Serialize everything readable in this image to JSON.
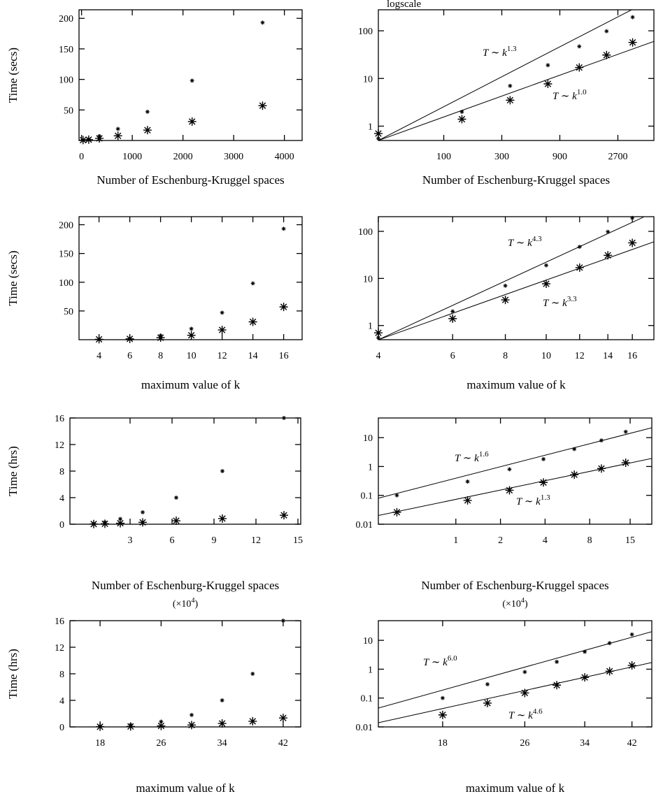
{
  "chart_data": [
    {
      "type": "scatter",
      "xscale": "linear",
      "yscale": "linear",
      "xlabel": "Number of Eschenburg-Kruggel spaces",
      "ylabel": "Time (secs)",
      "x": [
        29,
        141,
        351,
        718,
        1300,
        2180,
        3570
      ],
      "xlim": [
        -50,
        4350
      ],
      "xticks": [
        0,
        1000,
        2000,
        3000,
        4000
      ],
      "ylim": [
        0,
        214
      ],
      "yticks": [
        50,
        100,
        150,
        200
      ],
      "series": [
        {
          "marker": "small-star",
          "color": "#000000",
          "values": [
            0.55,
            2,
            7,
            19,
            47,
            98,
            193
          ]
        },
        {
          "marker": "big-star",
          "color": "#000000",
          "values": [
            0.7,
            1.4,
            3.5,
            7.7,
            17,
            31,
            57
          ]
        }
      ]
    },
    {
      "type": "scatter",
      "xscale": "log",
      "yscale": "log",
      "xlabel": "Number of Eschenburg-Kruggel spaces",
      "note": "logscale",
      "x": [
        29,
        141,
        351,
        718,
        1300,
        2180,
        3570
      ],
      "xlim": [
        29,
        5340
      ],
      "xticks": [
        100,
        300,
        900,
        2700
      ],
      "ylim": [
        0.5,
        276
      ],
      "yticks": [
        1,
        10,
        100
      ],
      "series": [
        {
          "marker": "small-star",
          "color": "#000000",
          "values": [
            0.55,
            2,
            7,
            19,
            47,
            98,
            193
          ]
        },
        {
          "marker": "big-star",
          "color": "#000000",
          "values": [
            0.7,
            1.4,
            3.5,
            7.7,
            17,
            31,
            57
          ]
        }
      ],
      "lines": [
        {
          "x": [
            29,
            3500
          ],
          "y": [
            0.5,
            276
          ]
        },
        {
          "x": [
            29,
            5340
          ],
          "y": [
            0.5,
            60
          ]
        }
      ],
      "annotations": [
        {
          "text": "T ∼ k",
          "sup": "1.3"
        },
        {
          "text": "T ∼ k",
          "sup": "1.0"
        }
      ]
    },
    {
      "type": "scatter",
      "xscale": "linear",
      "yscale": "linear",
      "xlabel": "maximum value of k",
      "ylabel": "Time (secs)",
      "x": [
        4,
        6,
        8,
        10,
        12,
        14,
        16
      ],
      "xlim": [
        2.7,
        17.2
      ],
      "xticks": [
        4,
        6,
        8,
        10,
        12,
        14,
        16
      ],
      "ylim": [
        0,
        214
      ],
      "yticks": [
        50,
        100,
        150,
        200
      ],
      "series": [
        {
          "marker": "small-star",
          "color": "#000000",
          "values": [
            0.55,
            2,
            7,
            19,
            47,
            98,
            193
          ]
        },
        {
          "marker": "big-star",
          "color": "#000000",
          "values": [
            0.7,
            1.4,
            3.5,
            7.7,
            17,
            31,
            57
          ]
        }
      ]
    },
    {
      "type": "scatter",
      "xscale": "log",
      "yscale": "log",
      "xlabel": "maximum value of k",
      "x": [
        4,
        6,
        8,
        10,
        12,
        14,
        16
      ],
      "xlim": [
        4,
        18
      ],
      "xticks": [
        4,
        6,
        8,
        10,
        12,
        14,
        16
      ],
      "ylim": [
        0.5,
        205
      ],
      "yticks": [
        1,
        10,
        100
      ],
      "series": [
        {
          "marker": "small-star",
          "color": "#000000",
          "values": [
            0.55,
            2,
            7,
            19,
            47,
            98,
            193
          ]
        },
        {
          "marker": "big-star",
          "color": "#000000",
          "values": [
            0.7,
            1.4,
            3.5,
            7.7,
            17,
            31,
            57
          ]
        }
      ],
      "lines": [
        {
          "x": [
            4,
            17
          ],
          "y": [
            0.5,
            200
          ]
        },
        {
          "x": [
            4,
            18
          ],
          "y": [
            0.5,
            60
          ]
        }
      ],
      "annotations": [
        {
          "text": "T ∼ k",
          "sup": "4.3"
        },
        {
          "text": "T ∼ k",
          "sup": "3.3"
        }
      ]
    },
    {
      "type": "scatter",
      "xscale": "linear",
      "yscale": "linear",
      "xlabel": "Number of Eschenburg-Kruggel spaces",
      "xunit": {
        "pre": "(×10",
        "sup": "4",
        "post": ")"
      },
      "ylabel": "Time (hrs)",
      "x": [
        0.4,
        1.2,
        2.3,
        3.9,
        6.3,
        9.6,
        14
      ],
      "xlim": [
        -1.3,
        15.2
      ],
      "xticks": [
        3,
        6,
        9,
        12,
        15
      ],
      "ylim": [
        0,
        16
      ],
      "yticks": [
        0,
        4,
        8,
        12,
        16
      ],
      "series": [
        {
          "marker": "small-star",
          "color": "#000000",
          "values": [
            0.1,
            0.3,
            0.8,
            1.8,
            4,
            8,
            16
          ]
        },
        {
          "marker": "big-star",
          "color": "#000000",
          "values": [
            0.026,
            0.067,
            0.15,
            0.28,
            0.52,
            0.85,
            1.35
          ]
        }
      ]
    },
    {
      "type": "scatter",
      "xscale": "log",
      "yscale": "log",
      "xlabel": "Number of Eschenburg-Kruggel spaces",
      "xunit": {
        "pre": "(×10",
        "sup": "4",
        "post": ")"
      },
      "x": [
        0.4,
        1.2,
        2.3,
        3.9,
        6.3,
        9.6,
        14
      ],
      "xlim": [
        0.3,
        21
      ],
      "xticks": [
        1,
        2,
        4,
        8,
        15
      ],
      "ylim": [
        0.01,
        48
      ],
      "yticks": [
        0.01,
        0.1,
        1,
        10
      ],
      "series": [
        {
          "marker": "small-star",
          "color": "#000000",
          "values": [
            0.1,
            0.3,
            0.8,
            1.8,
            4,
            8,
            16
          ]
        },
        {
          "marker": "big-star",
          "color": "#000000",
          "values": [
            0.026,
            0.067,
            0.15,
            0.28,
            0.52,
            0.85,
            1.35
          ]
        }
      ],
      "lines": [
        {
          "x": [
            0.3,
            21
          ],
          "y": [
            0.08,
            22
          ]
        },
        {
          "x": [
            0.3,
            21
          ],
          "y": [
            0.02,
            1.9
          ]
        }
      ],
      "annotations": [
        {
          "text": "T ∼ k",
          "sup": "1.6"
        },
        {
          "text": "T ∼ k",
          "sup": "1.3"
        }
      ]
    },
    {
      "type": "scatter",
      "xscale": "linear",
      "yscale": "linear",
      "xlabel": "maximum value of k",
      "ylabel": "Time (hrs)",
      "x": [
        18,
        22,
        26,
        30,
        34,
        38,
        42
      ],
      "xlim": [
        14.05,
        44.3
      ],
      "xticks": [
        18,
        26,
        34,
        42
      ],
      "ylim": [
        0,
        16
      ],
      "yticks": [
        0,
        4,
        8,
        12,
        16
      ],
      "series": [
        {
          "marker": "small-star",
          "color": "#000000",
          "values": [
            0.1,
            0.3,
            0.8,
            1.8,
            4,
            8,
            16
          ]
        },
        {
          "marker": "big-star",
          "color": "#000000",
          "values": [
            0.026,
            0.067,
            0.15,
            0.28,
            0.52,
            0.85,
            1.35
          ]
        }
      ]
    },
    {
      "type": "scatter",
      "xscale": "log",
      "yscale": "log",
      "xlabel": "maximum value of k",
      "x": [
        18,
        22,
        26,
        30,
        34,
        38,
        42
      ],
      "xlim": [
        13.5,
        45.9
      ],
      "xticks": [
        18,
        26,
        34,
        42
      ],
      "ylim": [
        0.01,
        48
      ],
      "yticks": [
        0.01,
        0.1,
        1,
        10
      ],
      "series": [
        {
          "marker": "small-star",
          "color": "#000000",
          "values": [
            0.1,
            0.3,
            0.8,
            1.8,
            4,
            8,
            16
          ]
        },
        {
          "marker": "big-star",
          "color": "#000000",
          "values": [
            0.026,
            0.067,
            0.15,
            0.28,
            0.52,
            0.85,
            1.35
          ]
        }
      ],
      "lines": [
        {
          "x": [
            13.5,
            45.9
          ],
          "y": [
            0.045,
            20
          ]
        },
        {
          "x": [
            13.5,
            45.9
          ],
          "y": [
            0.014,
            1.7
          ]
        }
      ],
      "annotations": [
        {
          "text": "T ∼ k",
          "sup": "6.0"
        },
        {
          "text": "T ∼ k",
          "sup": "4.6"
        }
      ]
    }
  ]
}
